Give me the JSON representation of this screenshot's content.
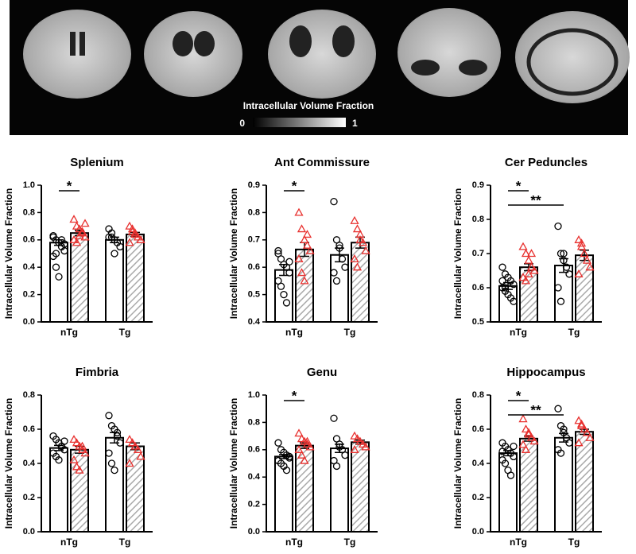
{
  "image_panel": {
    "colorbar": {
      "label": "Intracellular Volume Fraction",
      "ticks": [
        0,
        1
      ]
    }
  },
  "chart_data": [
    {
      "type": "bar",
      "title": "Splenium",
      "ylabel": "Intracellular Volume Fraction",
      "categories": [
        "nTg",
        "Tg"
      ],
      "ylim": [
        0,
        1
      ],
      "yticks": [
        {
          "value": 0,
          "label": "0.0"
        },
        0.2,
        0.4,
        0.6,
        0.8,
        {
          "value": 1,
          "label": "1.0"
        }
      ],
      "series": [
        {
          "color": "#000000",
          "values": [
            0.58,
            0.6
          ],
          "errors": [
            0.02,
            0.02
          ],
          "points": [
            [
              0.62,
              0.6,
              0.58,
              0.55,
              0.52,
              0.48,
              0.4,
              0.33,
              0.6,
              0.57,
              0.63,
              0.5
            ],
            [
              0.68,
              0.62,
              0.6,
              0.58,
              0.55,
              0.62,
              0.65,
              0.5
            ]
          ]
        },
        {
          "color": "#e8312f",
          "values": [
            0.65,
            0.64
          ],
          "errors": [
            0.02,
            0.015
          ],
          "points": [
            [
              0.75,
              0.7,
              0.68,
              0.65,
              0.62,
              0.6,
              0.58,
              0.63,
              0.66,
              0.72
            ],
            [
              0.7,
              0.68,
              0.65,
              0.62,
              0.6,
              0.58,
              0.66,
              0.64
            ]
          ]
        }
      ],
      "annotations": [
        "*"
      ]
    },
    {
      "type": "bar",
      "title": "Ant Commissure",
      "ylabel": "Intracellular Volume Fraction",
      "categories": [
        "nTg",
        "Tg"
      ],
      "ylim": [
        0.4,
        0.9
      ],
      "yticks": [
        0.4,
        0.5,
        0.6,
        0.7,
        0.8,
        0.9
      ],
      "series": [
        {
          "color": "#000000",
          "values": [
            0.59,
            0.645
          ],
          "errors": [
            0.02,
            0.025
          ],
          "points": [
            [
              0.66,
              0.63,
              0.61,
              0.6,
              0.58,
              0.55,
              0.53,
              0.5,
              0.47,
              0.62,
              0.65
            ],
            [
              0.84,
              0.7,
              0.67,
              0.63,
              0.6,
              0.58,
              0.55,
              0.68
            ]
          ]
        },
        {
          "color": "#e8312f",
          "values": [
            0.665,
            0.69
          ],
          "errors": [
            0.025,
            0.02
          ],
          "points": [
            [
              0.8,
              0.74,
              0.7,
              0.68,
              0.66,
              0.63,
              0.58,
              0.55,
              0.72
            ],
            [
              0.77,
              0.74,
              0.72,
              0.69,
              0.66,
              0.63,
              0.6,
              0.7
            ]
          ]
        }
      ],
      "annotations": [
        "*"
      ]
    },
    {
      "type": "bar",
      "title": "Cer Peduncles",
      "ylabel": "Intracellular Volume Fraction",
      "categories": [
        "nTg",
        "Tg"
      ],
      "ylim": [
        0.5,
        0.9
      ],
      "yticks": [
        0.5,
        0.6,
        0.7,
        0.8,
        0.9
      ],
      "series": [
        {
          "color": "#000000",
          "values": [
            0.605,
            0.665
          ],
          "errors": [
            0.01,
            0.02
          ],
          "points": [
            [
              0.66,
              0.64,
              0.63,
              0.62,
              0.61,
              0.6,
              0.59,
              0.58,
              0.57,
              0.56,
              0.62,
              0.6
            ],
            [
              0.78,
              0.7,
              0.68,
              0.66,
              0.64,
              0.6,
              0.56,
              0.7
            ]
          ]
        },
        {
          "color": "#e8312f",
          "values": [
            0.66,
            0.695
          ],
          "errors": [
            0.01,
            0.015
          ],
          "points": [
            [
              0.72,
              0.7,
              0.68,
              0.66,
              0.65,
              0.63,
              0.62,
              0.64,
              0.7
            ],
            [
              0.74,
              0.72,
              0.7,
              0.68,
              0.66,
              0.64,
              0.73
            ]
          ]
        }
      ],
      "annotations": [
        "*",
        "**"
      ]
    },
    {
      "type": "bar",
      "title": "Fimbria",
      "ylabel": "Intracellular Volume Fraction",
      "categories": [
        "nTg",
        "Tg"
      ],
      "ylim": [
        0,
        0.8
      ],
      "yticks": [
        {
          "value": 0,
          "label": "0.0"
        },
        0.2,
        0.4,
        0.6,
        0.8
      ],
      "series": [
        {
          "color": "#000000",
          "values": [
            0.49,
            0.55
          ],
          "errors": [
            0.015,
            0.03
          ],
          "points": [
            [
              0.56,
              0.54,
              0.52,
              0.5,
              0.48,
              0.46,
              0.44,
              0.42,
              0.5,
              0.53
            ],
            [
              0.68,
              0.62,
              0.6,
              0.56,
              0.52,
              0.46,
              0.4,
              0.36,
              0.58
            ]
          ]
        },
        {
          "color": "#e8312f",
          "values": [
            0.48,
            0.5
          ],
          "errors": [
            0.02,
            0.02
          ],
          "points": [
            [
              0.54,
              0.52,
              0.5,
              0.48,
              0.46,
              0.42,
              0.38,
              0.36,
              0.5
            ],
            [
              0.54,
              0.52,
              0.5,
              0.48,
              0.44,
              0.4,
              0.52
            ]
          ]
        }
      ],
      "annotations": []
    },
    {
      "type": "bar",
      "title": "Genu",
      "ylabel": "Intracellular Volume Fraction",
      "categories": [
        "nTg",
        "Tg"
      ],
      "ylim": [
        0,
        1
      ],
      "yticks": [
        {
          "value": 0,
          "label": "0.0"
        },
        0.2,
        0.4,
        0.6,
        0.8,
        {
          "value": 1,
          "label": "1.0"
        }
      ],
      "series": [
        {
          "color": "#000000",
          "values": [
            0.55,
            0.61
          ],
          "errors": [
            0.015,
            0.03
          ],
          "points": [
            [
              0.65,
              0.6,
              0.58,
              0.56,
              0.54,
              0.52,
              0.5,
              0.48,
              0.45,
              0.55
            ],
            [
              0.83,
              0.68,
              0.64,
              0.6,
              0.56,
              0.52,
              0.48,
              0.62
            ]
          ]
        },
        {
          "color": "#e8312f",
          "values": [
            0.63,
            0.655
          ],
          "errors": [
            0.02,
            0.015
          ],
          "points": [
            [
              0.72,
              0.68,
              0.66,
              0.64,
              0.62,
              0.6,
              0.56,
              0.52,
              0.66
            ],
            [
              0.7,
              0.68,
              0.66,
              0.64,
              0.62,
              0.6
            ]
          ]
        }
      ],
      "annotations": [
        "*"
      ]
    },
    {
      "type": "bar",
      "title": "Hippocampus",
      "ylabel": "Intracellular Volume Fraction",
      "categories": [
        "nTg",
        "Tg"
      ],
      "ylim": [
        0,
        0.8
      ],
      "yticks": [
        {
          "value": 0,
          "label": "0.0"
        },
        0.2,
        0.4,
        0.6,
        0.8
      ],
      "series": [
        {
          "color": "#000000",
          "values": [
            0.46,
            0.55
          ],
          "errors": [
            0.015,
            0.025
          ],
          "points": [
            [
              0.52,
              0.5,
              0.48,
              0.46,
              0.44,
              0.42,
              0.4,
              0.36,
              0.33,
              0.5,
              0.47
            ],
            [
              0.72,
              0.62,
              0.58,
              0.55,
              0.52,
              0.48,
              0.46,
              0.6
            ]
          ]
        },
        {
          "color": "#e8312f",
          "values": [
            0.545,
            0.585
          ],
          "errors": [
            0.015,
            0.015
          ],
          "points": [
            [
              0.66,
              0.6,
              0.57,
              0.55,
              0.53,
              0.51,
              0.48,
              0.58
            ],
            [
              0.65,
              0.62,
              0.6,
              0.58,
              0.55,
              0.52,
              0.63
            ]
          ]
        }
      ],
      "annotations": [
        "*",
        "**"
      ]
    }
  ]
}
